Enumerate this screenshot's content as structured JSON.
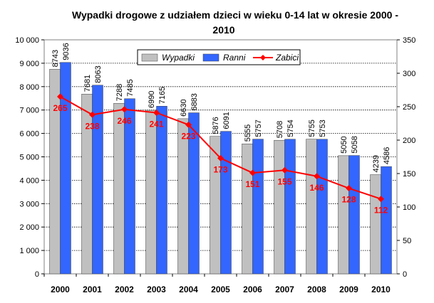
{
  "chart_data": {
    "type": "bar",
    "title_line1": "Wypadki drogowe z udziałem dzieci w wieku 0-14 lat w okresie 2000 -",
    "title_line2": "2010",
    "categories": [
      "2000",
      "2001",
      "2002",
      "2003",
      "2004",
      "2005",
      "2006",
      "2007",
      "2008",
      "2009",
      "2010"
    ],
    "series": [
      {
        "name": "Wypadki",
        "type": "bar",
        "axis": "left",
        "color": "#c0c0c0",
        "values": [
          8743,
          7681,
          7288,
          6990,
          6630,
          5876,
          5555,
          5708,
          5755,
          5050,
          4239
        ]
      },
      {
        "name": "Ranni",
        "type": "bar",
        "axis": "left",
        "color": "#3366ff",
        "values": [
          9036,
          8063,
          7485,
          7165,
          6883,
          6091,
          5757,
          5754,
          5753,
          5058,
          4586
        ]
      },
      {
        "name": "Zabici",
        "type": "line",
        "axis": "right",
        "color": "#ff0000",
        "values": [
          265,
          238,
          246,
          241,
          223,
          173,
          151,
          155,
          146,
          128,
          112
        ]
      }
    ],
    "ylim_left": [
      0,
      10000
    ],
    "yticks_left": [
      "0",
      "1 000",
      "2 000",
      "3 000",
      "4 000",
      "5 000",
      "6 000",
      "7 000",
      "8 000",
      "9 000",
      "10 000"
    ],
    "ylim_right": [
      0,
      350
    ],
    "yticks_right": [
      "0",
      "50",
      "100",
      "150",
      "200",
      "250",
      "300",
      "350"
    ],
    "grid": true,
    "legend_position": "top-center"
  }
}
